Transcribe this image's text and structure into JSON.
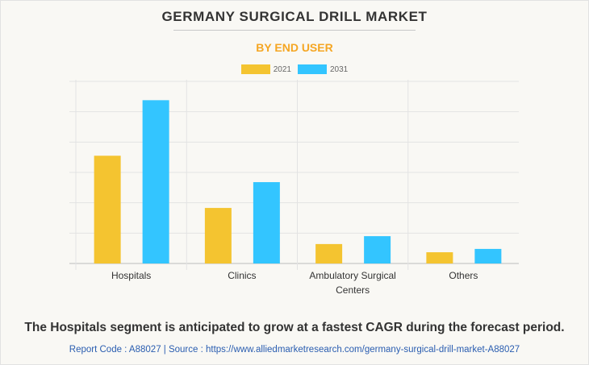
{
  "header": {
    "title": "GERMANY SURGICAL DRILL MARKET",
    "subtitle": "BY END USER"
  },
  "colors": {
    "series_2021": "#f4c430",
    "series_2031": "#33c5ff",
    "subtitle": "#f5a623",
    "grid": "#e3e3e3",
    "link": "#2a5db0"
  },
  "chart_data": {
    "type": "bar",
    "title": "GERMANY SURGICAL DRILL MARKET",
    "subtitle": "BY END USER",
    "xlabel": "",
    "ylabel": "",
    "categories": [
      "Hospitals",
      "Clinics",
      "Ambulatory Surgical Centers",
      "Others"
    ],
    "category_lines": [
      [
        "Hospitals"
      ],
      [
        "Clinics"
      ],
      [
        "Ambulatory Surgical",
        "Centers"
      ],
      [
        "Others"
      ]
    ],
    "series": [
      {
        "name": "2021",
        "values": [
          3.55,
          1.83,
          0.64,
          0.37
        ]
      },
      {
        "name": "2031",
        "values": [
          5.38,
          2.68,
          0.9,
          0.48
        ]
      }
    ],
    "ylim": [
      0,
      6
    ],
    "y_gridlines": 6,
    "y_tick_labels_shown": false,
    "grid": true,
    "legend": "top-center",
    "note": "Values in relative gridline units; no y-axis labels shown"
  },
  "footer": {
    "insight": "The Hospitals segment is anticipated to grow at a fastest CAGR during the forecast period.",
    "source": "Report Code : A88027  |  Source : https://www.alliedmarketresearch.com/germany-surgical-drill-market-A88027"
  }
}
